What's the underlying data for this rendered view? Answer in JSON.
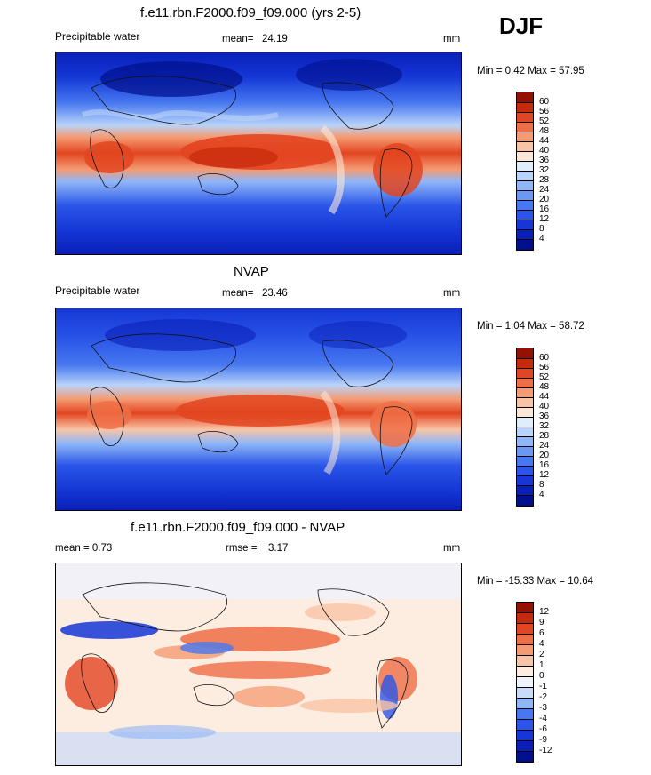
{
  "season": "DJF",
  "panels": [
    {
      "title": "f.e11.rbn.F2000.f09_f09.000 (yrs 2-5)",
      "left_label": "Precipitable water",
      "stat_label": "mean=",
      "stat_value": "24.19",
      "units": "mm",
      "minmax": "Min =   0.42 Max =  57.95",
      "colorbar_labels": [
        "60",
        "56",
        "52",
        "48",
        "44",
        "40",
        "36",
        "32",
        "28",
        "24",
        "20",
        "16",
        "12",
        "8",
        "4"
      ]
    },
    {
      "title": "NVAP",
      "left_label": "Precipitable water",
      "stat_label": "mean=",
      "stat_value": "23.46",
      "units": "mm",
      "minmax": "Min =   1.04 Max =  58.72",
      "colorbar_labels": [
        "60",
        "56",
        "52",
        "48",
        "44",
        "40",
        "36",
        "32",
        "28",
        "24",
        "20",
        "16",
        "12",
        "8",
        "4"
      ]
    },
    {
      "title": "f.e11.rbn.F2000.f09_f09.000 - NVAP",
      "left_label": "mean =   0.73",
      "stat_label": "rmse =",
      "stat_value": "3.17",
      "units": "mm",
      "minmax": "Min = -15.33 Max =  10.64",
      "colorbar_labels": [
        "12",
        "9",
        "6",
        "4",
        "2",
        "1",
        "0",
        "-1",
        "-2",
        "-3",
        "-4",
        "-6",
        "-9",
        "-12"
      ]
    }
  ],
  "colors": {
    "abs_scale": [
      "#000f8c",
      "#0a1fb8",
      "#1437d6",
      "#2a55e8",
      "#4778f0",
      "#6a98f5",
      "#8fb6f8",
      "#b9d3fa",
      "#e2edfc",
      "#fbe7d8",
      "#f9c4a6",
      "#f49b73",
      "#ee6e45",
      "#e24520",
      "#c42a0c",
      "#961002"
    ],
    "diff_scale": [
      "#000f8c",
      "#0a1fb8",
      "#1437d6",
      "#2a55e8",
      "#4778f0",
      "#8fb6f8",
      "#c8dcfa",
      "#eef3fc",
      "#fdece0",
      "#f9c4a6",
      "#f49b73",
      "#ee6e45",
      "#e24520",
      "#c42a0c",
      "#961002"
    ]
  }
}
